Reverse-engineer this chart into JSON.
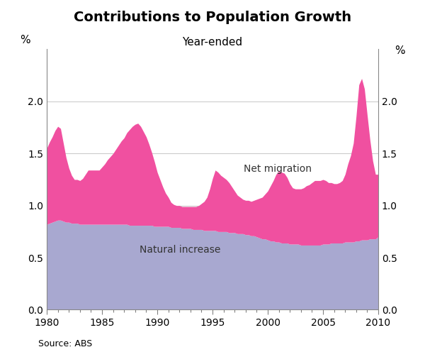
{
  "title": "Contributions to Population Growth",
  "subtitle": "Year-ended",
  "source": "Source: ABS",
  "ylabel_left": "%",
  "ylabel_right": "%",
  "ylim": [
    0.0,
    2.5
  ],
  "yticks": [
    0.0,
    0.5,
    1.0,
    1.5,
    2.0
  ],
  "xlim": [
    1980,
    2010
  ],
  "xticks": [
    1980,
    1985,
    1990,
    1995,
    2000,
    2005,
    2010
  ],
  "natural_increase_color": "#a8a8d0",
  "net_migration_color": "#f050a0",
  "natural_increase_label": "Natural increase",
  "net_migration_label": "Net migration",
  "years": [
    1980.0,
    1980.25,
    1980.5,
    1980.75,
    1981.0,
    1981.25,
    1981.5,
    1981.75,
    1982.0,
    1982.25,
    1982.5,
    1982.75,
    1983.0,
    1983.25,
    1983.5,
    1983.75,
    1984.0,
    1984.25,
    1984.5,
    1984.75,
    1985.0,
    1985.25,
    1985.5,
    1985.75,
    1986.0,
    1986.25,
    1986.5,
    1986.75,
    1987.0,
    1987.25,
    1987.5,
    1987.75,
    1988.0,
    1988.25,
    1988.5,
    1988.75,
    1989.0,
    1989.25,
    1989.5,
    1989.75,
    1990.0,
    1990.25,
    1990.5,
    1990.75,
    1991.0,
    1991.25,
    1991.5,
    1991.75,
    1992.0,
    1992.25,
    1992.5,
    1992.75,
    1993.0,
    1993.25,
    1993.5,
    1993.75,
    1994.0,
    1994.25,
    1994.5,
    1994.75,
    1995.0,
    1995.25,
    1995.5,
    1995.75,
    1996.0,
    1996.25,
    1996.5,
    1996.75,
    1997.0,
    1997.25,
    1997.5,
    1997.75,
    1998.0,
    1998.25,
    1998.5,
    1998.75,
    1999.0,
    1999.25,
    1999.5,
    1999.75,
    2000.0,
    2000.25,
    2000.5,
    2000.75,
    2001.0,
    2001.25,
    2001.5,
    2001.75,
    2002.0,
    2002.25,
    2002.5,
    2002.75,
    2003.0,
    2003.25,
    2003.5,
    2003.75,
    2004.0,
    2004.25,
    2004.5,
    2004.75,
    2005.0,
    2005.25,
    2005.5,
    2005.75,
    2006.0,
    2006.25,
    2006.5,
    2006.75,
    2007.0,
    2007.25,
    2007.5,
    2007.75,
    2008.0,
    2008.25,
    2008.5,
    2008.75,
    2009.0,
    2009.25,
    2009.5,
    2009.75,
    2010.0
  ],
  "natural_increase": [
    0.82,
    0.83,
    0.84,
    0.85,
    0.86,
    0.86,
    0.85,
    0.84,
    0.84,
    0.83,
    0.83,
    0.83,
    0.82,
    0.82,
    0.82,
    0.82,
    0.82,
    0.82,
    0.82,
    0.82,
    0.82,
    0.82,
    0.82,
    0.82,
    0.82,
    0.82,
    0.82,
    0.82,
    0.82,
    0.82,
    0.81,
    0.81,
    0.81,
    0.81,
    0.81,
    0.81,
    0.81,
    0.81,
    0.81,
    0.8,
    0.8,
    0.8,
    0.8,
    0.8,
    0.8,
    0.79,
    0.79,
    0.79,
    0.79,
    0.78,
    0.78,
    0.78,
    0.78,
    0.77,
    0.77,
    0.77,
    0.77,
    0.76,
    0.76,
    0.76,
    0.76,
    0.76,
    0.75,
    0.75,
    0.75,
    0.75,
    0.74,
    0.74,
    0.74,
    0.73,
    0.73,
    0.73,
    0.72,
    0.72,
    0.71,
    0.71,
    0.7,
    0.69,
    0.68,
    0.68,
    0.67,
    0.66,
    0.66,
    0.65,
    0.65,
    0.64,
    0.64,
    0.64,
    0.63,
    0.63,
    0.63,
    0.63,
    0.62,
    0.62,
    0.62,
    0.62,
    0.62,
    0.62,
    0.62,
    0.62,
    0.63,
    0.63,
    0.63,
    0.64,
    0.64,
    0.64,
    0.64,
    0.64,
    0.65,
    0.65,
    0.65,
    0.65,
    0.66,
    0.66,
    0.67,
    0.67,
    0.67,
    0.68,
    0.68,
    0.68,
    0.7
  ],
  "net_migration": [
    0.73,
    0.78,
    0.82,
    0.87,
    0.9,
    0.88,
    0.75,
    0.62,
    0.52,
    0.46,
    0.42,
    0.42,
    0.42,
    0.44,
    0.48,
    0.52,
    0.52,
    0.52,
    0.52,
    0.52,
    0.55,
    0.58,
    0.62,
    0.65,
    0.68,
    0.72,
    0.76,
    0.8,
    0.83,
    0.88,
    0.92,
    0.95,
    0.97,
    0.98,
    0.95,
    0.9,
    0.85,
    0.78,
    0.7,
    0.62,
    0.52,
    0.45,
    0.38,
    0.32,
    0.28,
    0.24,
    0.22,
    0.21,
    0.21,
    0.21,
    0.21,
    0.21,
    0.21,
    0.22,
    0.22,
    0.23,
    0.25,
    0.28,
    0.32,
    0.4,
    0.5,
    0.58,
    0.57,
    0.54,
    0.52,
    0.5,
    0.48,
    0.44,
    0.4,
    0.37,
    0.35,
    0.33,
    0.33,
    0.33,
    0.33,
    0.34,
    0.36,
    0.38,
    0.4,
    0.43,
    0.47,
    0.53,
    0.58,
    0.65,
    0.68,
    0.68,
    0.67,
    0.63,
    0.58,
    0.54,
    0.53,
    0.53,
    0.54,
    0.55,
    0.57,
    0.58,
    0.6,
    0.62,
    0.62,
    0.62,
    0.62,
    0.61,
    0.59,
    0.58,
    0.57,
    0.57,
    0.58,
    0.6,
    0.65,
    0.75,
    0.83,
    0.95,
    1.2,
    1.5,
    1.55,
    1.45,
    1.2,
    0.95,
    0.75,
    0.62,
    0.6
  ]
}
